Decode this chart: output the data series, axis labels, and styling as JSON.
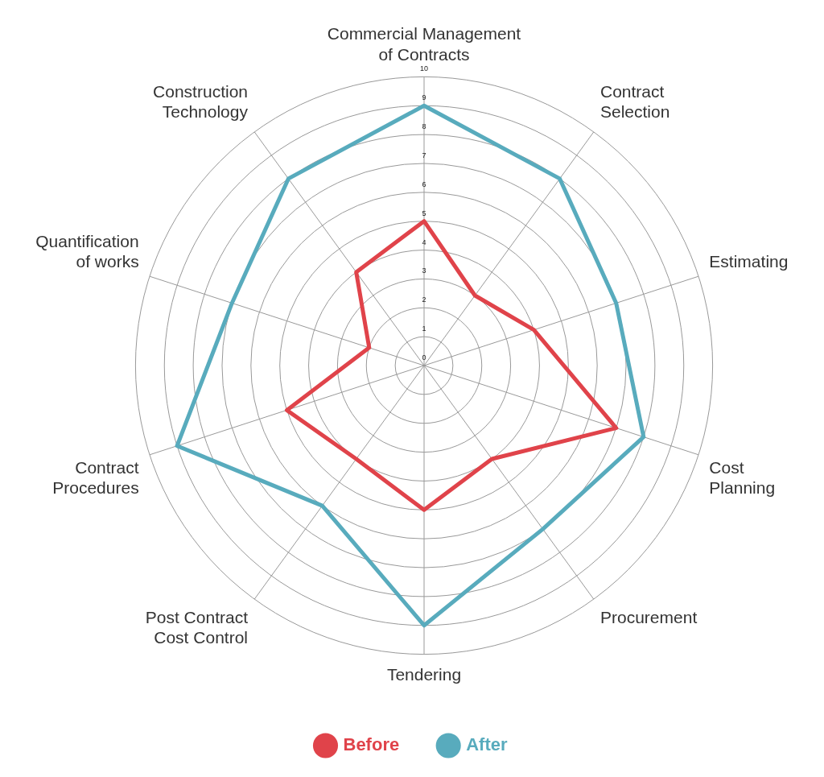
{
  "chart_data": {
    "type": "radar",
    "categories": [
      "Commercial Management\nof Contracts",
      "Contract\nSelection",
      "Estimating",
      "Cost\nPlanning",
      "Procurement",
      "Tendering",
      "Post Contract\nCost Control",
      "Contract\nProcedures",
      "Quantification\nof works",
      "Construction\nTechnology"
    ],
    "series": [
      {
        "name": "Before",
        "color": "#e0434a",
        "values": [
          5,
          3,
          4,
          7,
          4,
          5,
          4,
          5,
          2,
          4
        ]
      },
      {
        "name": "After",
        "color": "#58abbd",
        "values": [
          9,
          8,
          7,
          8,
          7,
          9,
          6,
          9,
          7,
          8
        ]
      }
    ],
    "ylim": [
      0,
      10
    ],
    "yticks": [
      0,
      1,
      2,
      3,
      4,
      5,
      6,
      7,
      8,
      9,
      10
    ],
    "grid": true,
    "legend": "bottom",
    "marker": "none"
  }
}
